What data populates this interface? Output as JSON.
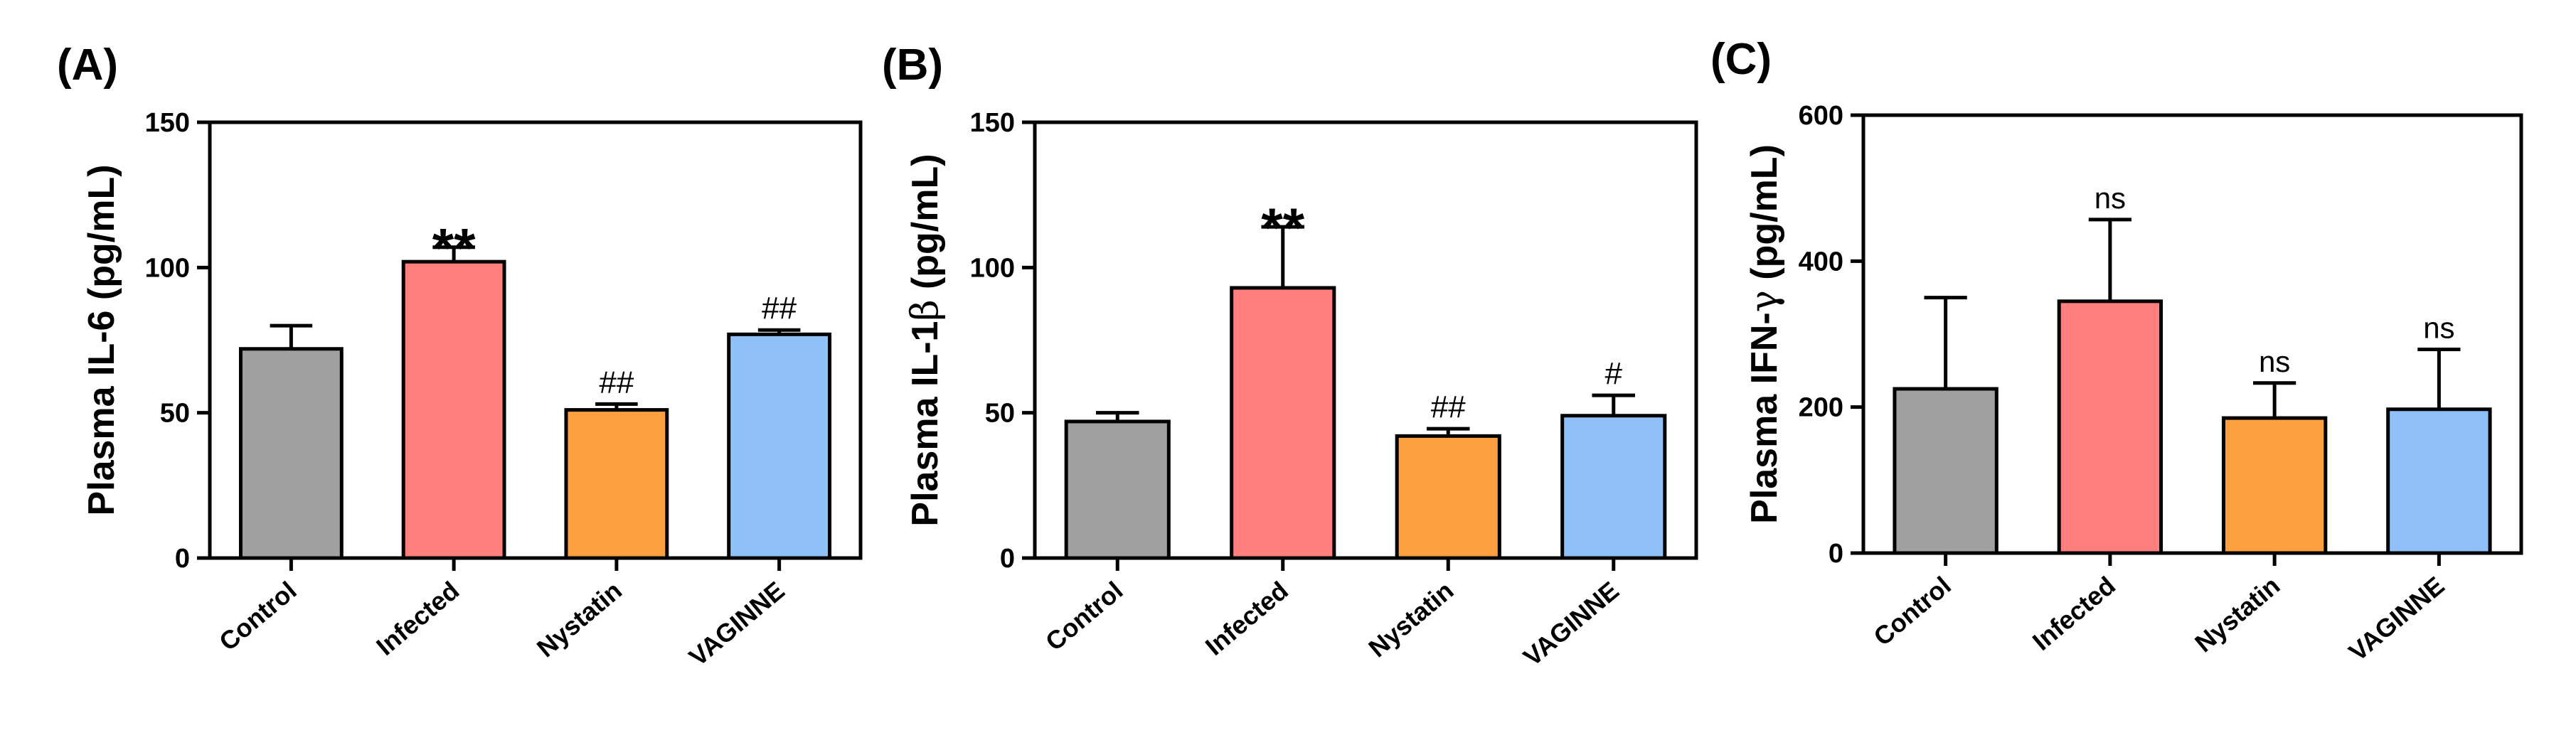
{
  "chart_data": [
    {
      "type": "bar",
      "panel_label": "(A)",
      "ylabel_prefix": "Plasma IL-6",
      "ylabel_unit": "(pg/mL)",
      "categories": [
        "Control",
        "Infected",
        "Nystatin",
        "VAGINNE"
      ],
      "values": [
        72,
        102,
        51,
        77
      ],
      "errors": [
        8,
        5,
        2,
        1.5
      ],
      "annotations": [
        "",
        "**",
        "##",
        "##"
      ],
      "ylim": [
        0,
        150
      ],
      "yticks": [
        "0",
        "50",
        "100",
        "150"
      ],
      "colors": [
        "#a0a0a0",
        "#ff7f7f",
        "#ffa040",
        "#8fc0f8"
      ]
    },
    {
      "type": "bar",
      "panel_label": "(B)",
      "ylabel_prefix": "Plasma IL-1",
      "ylabel_greek": "β",
      "ylabel_unit": "(pg/mL)",
      "categories": [
        "Control",
        "Infected",
        "Nystatin",
        "VAGINNE"
      ],
      "values": [
        47,
        93,
        42,
        49
      ],
      "errors": [
        3,
        21,
        2.5,
        7
      ],
      "annotations": [
        "",
        "**",
        "##",
        "#"
      ],
      "ylim": [
        0,
        150
      ],
      "yticks": [
        "0",
        "50",
        "100",
        "150"
      ],
      "colors": [
        "#a0a0a0",
        "#ff7f7f",
        "#ffa040",
        "#8fc0f8"
      ]
    },
    {
      "type": "bar",
      "panel_label": "(C)",
      "ylabel_prefix": "Plasma  IFN-",
      "ylabel_greek": "γ",
      "ylabel_unit": "(pg/mL)",
      "categories": [
        "Control",
        "Infected",
        "Nystatin",
        "VAGINNE"
      ],
      "values": [
        225,
        345,
        185,
        197
      ],
      "errors": [
        125,
        112,
        48,
        82
      ],
      "annotations": [
        "",
        "ns",
        "ns",
        "ns"
      ],
      "ylim": [
        0,
        600
      ],
      "yticks": [
        "0",
        "200",
        "400",
        "600"
      ],
      "colors": [
        "#a0a0a0",
        "#ff7f7f",
        "#ffa040",
        "#8fc0f8"
      ]
    }
  ]
}
